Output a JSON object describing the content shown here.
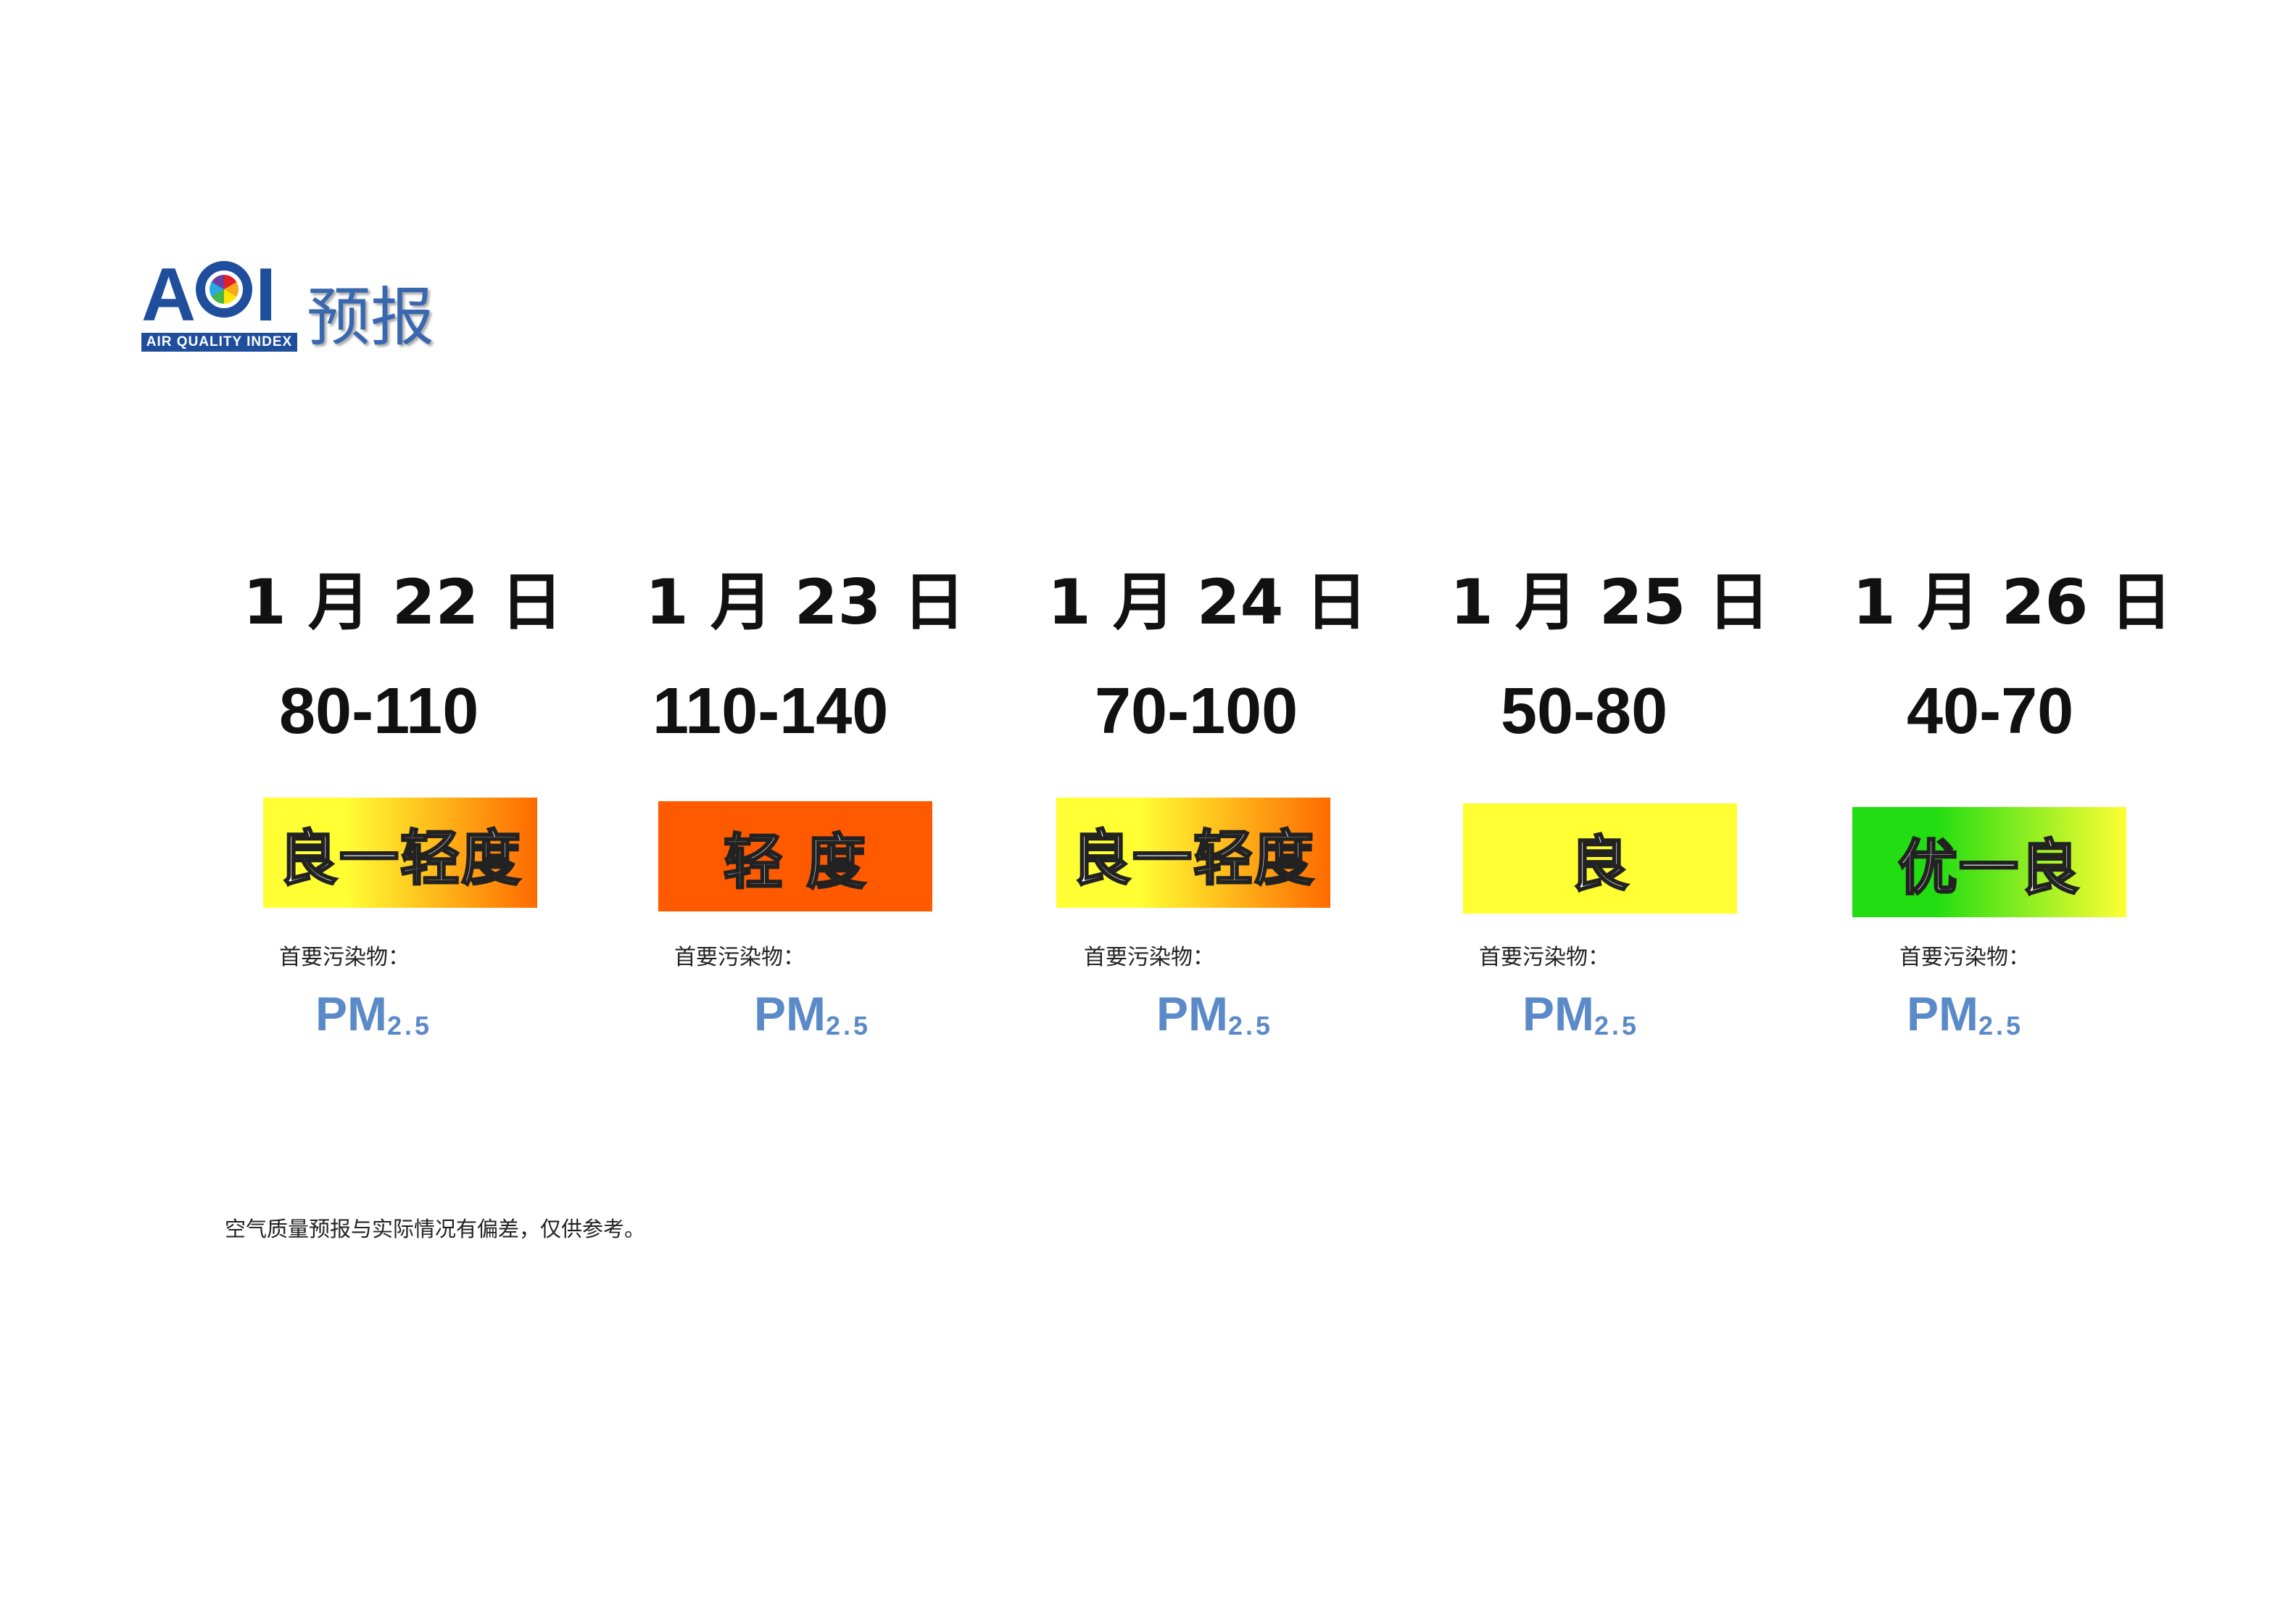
{
  "header": {
    "logo_letters_a": "A",
    "logo_letters_i": "I",
    "logo_bar": "AIR QUALITY INDEX",
    "title": "预报"
  },
  "days": [
    {
      "date": "1 月 22 日",
      "range": "80-110",
      "level": "良一轻度",
      "pollutant_label": "首要污染物：",
      "pollutant": "PM",
      "pollutant_sub": "2.5",
      "colors": [
        "#ffff33",
        "#ff6a00"
      ]
    },
    {
      "date": "1 月 23 日",
      "range": "110-140",
      "level": "轻 度",
      "pollutant_label": "首要污染物：",
      "pollutant": "PM",
      "pollutant_sub": "2.5",
      "colors": [
        "#ff5a00",
        "#ff5a00"
      ]
    },
    {
      "date": "1 月 24 日",
      "range": "70-100",
      "level": "良一轻度",
      "pollutant_label": "首要污染物：",
      "pollutant": "PM",
      "pollutant_sub": "2.5",
      "colors": [
        "#ffff33",
        "#ff6a00"
      ]
    },
    {
      "date": "1 月 25 日",
      "range": "50-80",
      "level": "良",
      "pollutant_label": "首要污染物：",
      "pollutant": "PM",
      "pollutant_sub": "2.5",
      "colors": [
        "#ffff33",
        "#ffff33"
      ]
    },
    {
      "date": "1 月 26 日",
      "range": "40-70",
      "level": "优一良",
      "pollutant_label": "首要污染物：",
      "pollutant": "PM",
      "pollutant_sub": "2.5",
      "colors": [
        "#22dd11",
        "#ffff33"
      ]
    }
  ],
  "footer": {
    "note": "空气质量预报与实际情况有偏差，仅供参考。"
  }
}
